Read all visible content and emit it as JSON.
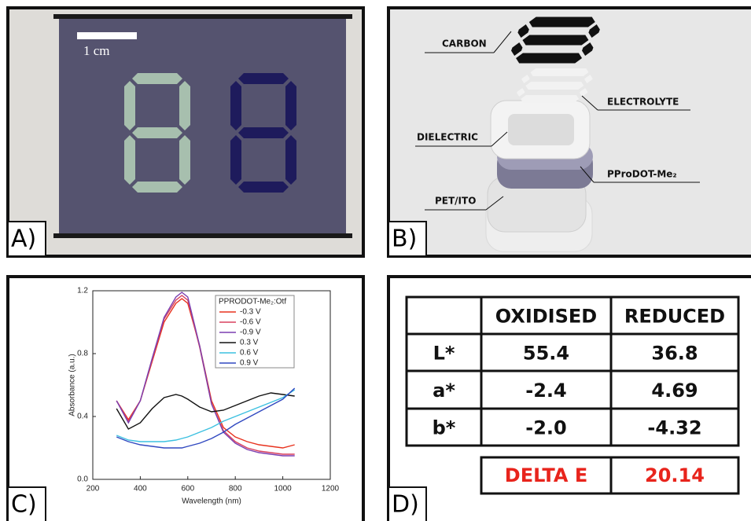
{
  "panels": {
    "a": {
      "label": "A)",
      "scale_label": "1 cm"
    },
    "b": {
      "label": "B)",
      "layers": [
        "CARBON",
        "ELECTROLYTE",
        "DIELECTRIC",
        "PProDOT-Me₂",
        "PET/ITO"
      ]
    },
    "c": {
      "label": "C)"
    },
    "d": {
      "label": "D)",
      "table": {
        "headers": [
          "OXIDISED",
          "REDUCED"
        ],
        "rows": [
          [
            "L*",
            "55.4",
            "36.8"
          ],
          [
            "a*",
            "-2.4",
            "4.69"
          ],
          [
            "b*",
            "-2.0",
            "-4.32"
          ]
        ],
        "delta": [
          "DELTA E",
          "20.14"
        ]
      }
    }
  },
  "chart_data": {
    "type": "line",
    "xlabel": "Wavelength (nm)",
    "ylabel": "Absorbance (a.u.)",
    "legend_title": "PPRODOT-Me₂:Otf",
    "x": [
      300,
      350,
      400,
      450,
      500,
      550,
      575,
      600,
      650,
      700,
      750,
      800,
      850,
      900,
      950,
      1000,
      1050
    ],
    "series": [
      {
        "name": "-0.3 V",
        "color": "#e8321e",
        "values": [
          0.5,
          0.38,
          0.5,
          0.75,
          1.0,
          1.12,
          1.15,
          1.12,
          0.85,
          0.5,
          0.33,
          0.27,
          0.24,
          0.22,
          0.21,
          0.2,
          0.22
        ]
      },
      {
        "name": "-0.6 V",
        "color": "#d8405e",
        "values": [
          0.5,
          0.37,
          0.5,
          0.76,
          1.02,
          1.14,
          1.17,
          1.14,
          0.84,
          0.48,
          0.31,
          0.24,
          0.2,
          0.18,
          0.17,
          0.16,
          0.16
        ]
      },
      {
        "name": "-0.9 V",
        "color": "#7b3fb0",
        "values": [
          0.5,
          0.36,
          0.5,
          0.77,
          1.03,
          1.16,
          1.19,
          1.16,
          0.85,
          0.48,
          0.3,
          0.23,
          0.19,
          0.17,
          0.16,
          0.15,
          0.15
        ]
      },
      {
        "name": "0.3 V",
        "color": "#111111",
        "values": [
          0.45,
          0.32,
          0.36,
          0.45,
          0.52,
          0.54,
          0.53,
          0.51,
          0.46,
          0.43,
          0.44,
          0.47,
          0.5,
          0.53,
          0.55,
          0.54,
          0.53
        ]
      },
      {
        "name": "0.6 V",
        "color": "#3cc0e0",
        "values": [
          0.28,
          0.25,
          0.24,
          0.24,
          0.24,
          0.25,
          0.26,
          0.27,
          0.3,
          0.33,
          0.37,
          0.4,
          0.43,
          0.46,
          0.49,
          0.52,
          0.57
        ]
      },
      {
        "name": "0.9 V",
        "color": "#3048c0",
        "values": [
          0.27,
          0.24,
          0.22,
          0.21,
          0.2,
          0.2,
          0.2,
          0.21,
          0.23,
          0.26,
          0.3,
          0.35,
          0.39,
          0.43,
          0.47,
          0.51,
          0.58
        ]
      }
    ],
    "xlim": [
      200,
      1200
    ],
    "xticks": [
      200,
      400,
      600,
      800,
      1000,
      1200
    ],
    "ylim": [
      0,
      1.2
    ],
    "yticks": [
      {
        "value": 0,
        "label": "0.0"
      },
      0.4,
      0.8,
      1.2
    ]
  }
}
